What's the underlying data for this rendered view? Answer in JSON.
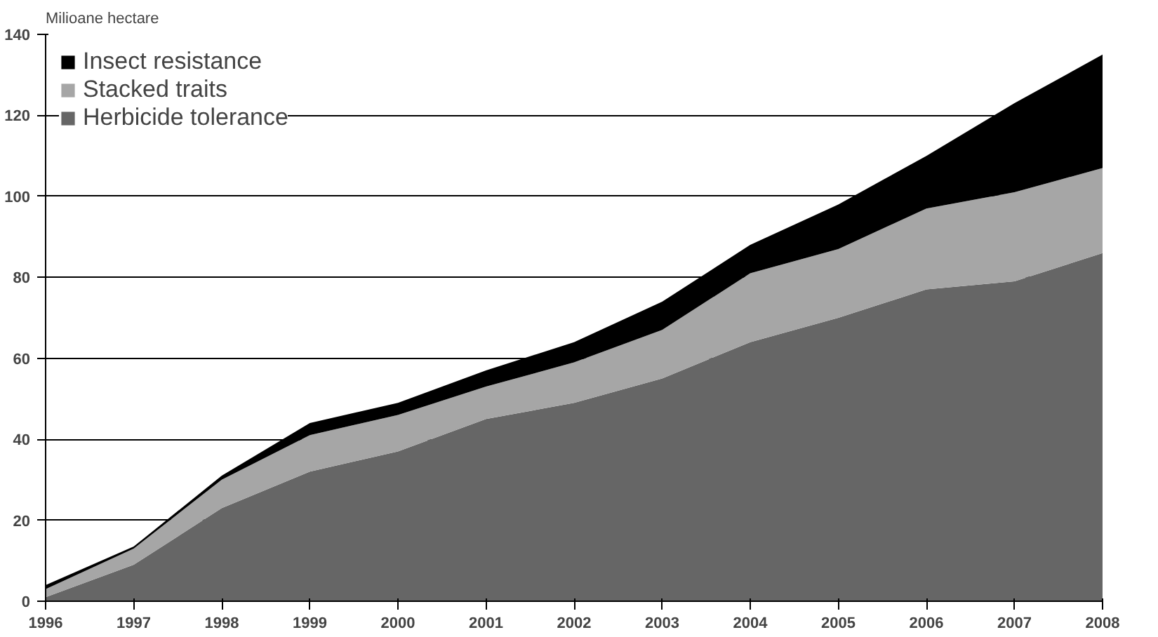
{
  "chart_data": {
    "type": "area",
    "stacked": true,
    "ylabel": "Milioane hectare",
    "x": [
      1996,
      1997,
      1998,
      1999,
      2000,
      2001,
      2002,
      2003,
      2004,
      2005,
      2006,
      2007,
      2008
    ],
    "xlim": [
      1996,
      2008
    ],
    "xticks": [
      1996,
      1997,
      1998,
      1999,
      2000,
      2001,
      2002,
      2003,
      2004,
      2005,
      2006,
      2007,
      2008
    ],
    "ylim": [
      0,
      140
    ],
    "yticks": [
      0,
      20,
      40,
      60,
      80,
      100,
      120,
      140
    ],
    "grid": "y",
    "legend": "top left",
    "series": [
      {
        "name": "Herbicide tolerance",
        "color": "#666666",
        "values": [
          1,
          9,
          23,
          32,
          37,
          45,
          49,
          55,
          64,
          70,
          77,
          79,
          86
        ]
      },
      {
        "name": "Stacked traits",
        "color": "#a6a6a6",
        "values": [
          2,
          4,
          7,
          9,
          9,
          8,
          10,
          12,
          17,
          17,
          20,
          22,
          21
        ]
      },
      {
        "name": "Insect resistance",
        "color": "#000000",
        "values": [
          1,
          0.5,
          1,
          3,
          3,
          4,
          5,
          7,
          7,
          11,
          13,
          22,
          28
        ]
      }
    ]
  }
}
